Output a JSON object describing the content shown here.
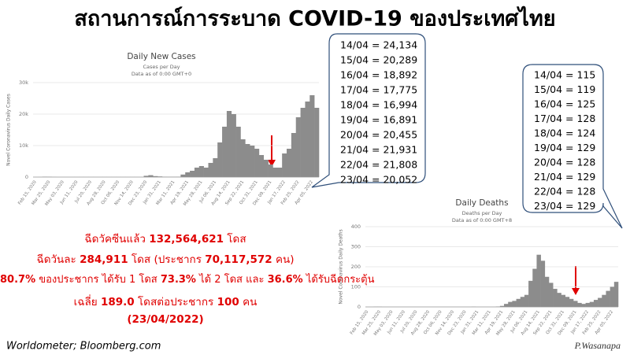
{
  "title": "สถานการณ์การระบาด COVID-19 ของประเทศไทย",
  "callouts": {
    "cases": [
      "14/04 = 24,134",
      "15/04 = 20,289",
      "16/04 = 18,892",
      "17/04 = 17,775",
      "18/04 = 16,994",
      "19/04 = 16,891",
      "20/04 = 20,455",
      "21/04 = 21,931",
      "22/04 = 21,808",
      "23/04 = 20,052"
    ],
    "deaths": [
      "14/04 = 115",
      "15/04 = 119",
      "16/04 = 125",
      "17/04 = 128",
      "18/04 = 124",
      "19/04 = 129",
      "20/04 = 128",
      "21/04 = 129",
      "22/04 = 128",
      "23/04 = 129"
    ]
  },
  "summary": [
    [
      "ฉีดวัคซีนแล้ว ",
      "132,564,621",
      " โดส"
    ],
    [
      "ฉีดวันละ ",
      "284,911",
      " โดส (ประชากร ",
      "70,117,572",
      " คน)"
    ],
    [
      "80.7%",
      " ของประชากร ได้รับ 1 โดส ",
      "73.3%",
      " ได้ 2 โดส และ ",
      "36.6%",
      " ได้รับฉีดกระตุ้น"
    ],
    [
      "เฉลี่ย ",
      "189.0",
      " โดสต่อประชากร ",
      "100",
      " คน"
    ],
    [
      "(23/04/2022)"
    ]
  ],
  "source": "Worldometer;  Bloomberg.com",
  "signature": "P.Wasanapa",
  "chart_data": [
    {
      "type": "bar",
      "title": "Daily New Cases",
      "subtitle": [
        "Cases per Day",
        "Data as of 0:00 GMT+0"
      ],
      "ylabel": "Novel Coronavirus Daily Cases",
      "color": "#8c8c8c",
      "categories": [
        "Feb 15, 2020",
        null,
        null,
        "Mar 25, 2020",
        null,
        null,
        "May 03, 2020",
        null,
        null,
        "Jun 11, 2020",
        null,
        null,
        "Jul 20, 2020",
        null,
        null,
        "Aug 28, 2020",
        null,
        null,
        "Oct 06, 2020",
        null,
        null,
        "Nov 14, 2020",
        null,
        null,
        "Dec 23, 2020",
        null,
        null,
        "Jan 31, 2021",
        null,
        null,
        "Mar 11, 2021",
        null,
        null,
        "Apr 19, 2021",
        null,
        null,
        "May 28, 2021",
        null,
        null,
        "Jul 06, 2021",
        null,
        null,
        "Aug 14, 2021",
        null,
        null,
        "Sep 22, 2021",
        null,
        null,
        "Oct 31, 2021",
        null,
        null,
        "Dec 09, 2021",
        null,
        null,
        "Jan 17, 2022",
        null,
        null,
        "Feb 25, 2022",
        null,
        null,
        "Apr 05, 2022",
        null
      ],
      "values": [
        0,
        10,
        120,
        100,
        20,
        5,
        5,
        3,
        5,
        5,
        5,
        5,
        5,
        5,
        5,
        5,
        5,
        5,
        5,
        5,
        5,
        5,
        5,
        5,
        400,
        600,
        300,
        200,
        100,
        80,
        80,
        100,
        800,
        1500,
        2000,
        3000,
        3500,
        3000,
        4500,
        6000,
        11000,
        16000,
        21000,
        20000,
        16000,
        12000,
        10500,
        10000,
        9000,
        7000,
        5500,
        4000,
        3000,
        3000,
        7500,
        9000,
        14000,
        19000,
        22000,
        24000,
        26000,
        22000
      ],
      "ylim": [
        0,
        30000
      ],
      "yticks": [
        0,
        {
          "value": 10000,
          "label": "10k"
        },
        {
          "value": 20000,
          "label": "20k"
        },
        {
          "value": 30000,
          "label": "30k"
        }
      ],
      "grid": true
    },
    {
      "type": "bar",
      "title": "Daily Deaths",
      "subtitle": [
        "Deaths per Day",
        "Data as of 0:00 GMT+8"
      ],
      "ylabel": "Novel Coronavirus Daily Deaths",
      "color": "#8c8c8c",
      "categories": [
        "Feb 15, 2020",
        null,
        null,
        "Mar 25, 2020",
        null,
        null,
        "May 03, 2020",
        null,
        null,
        "Jun 11, 2020",
        null,
        null,
        "Jul 20, 2020",
        null,
        null,
        "Aug 28, 2020",
        null,
        null,
        "Oct 06, 2020",
        null,
        null,
        "Nov 14, 2020",
        null,
        null,
        "Dec 23, 2020",
        null,
        null,
        "Jan 31, 2021",
        null,
        null,
        "Mar 11, 2021",
        null,
        null,
        "Apr 19, 2021",
        null,
        null,
        "May 28, 2021",
        null,
        null,
        "Jul 06, 2021",
        null,
        null,
        "Aug 14, 2021",
        null,
        null,
        "Sep 22, 2021",
        null,
        null,
        "Oct 31, 2021",
        null,
        null,
        "Dec 09, 2021",
        null,
        null,
        "Jan 17, 2022",
        null,
        null,
        "Feb 25, 2022",
        null,
        null,
        "Apr 05, 2022",
        null
      ],
      "values": [
        0,
        0,
        1,
        1,
        0,
        0,
        0,
        0,
        0,
        0,
        0,
        0,
        0,
        0,
        0,
        0,
        0,
        0,
        0,
        0,
        0,
        0,
        0,
        0,
        0,
        0,
        1,
        0,
        0,
        0,
        0,
        0,
        2,
        5,
        15,
        25,
        30,
        40,
        50,
        60,
        130,
        190,
        260,
        230,
        150,
        120,
        90,
        70,
        60,
        50,
        40,
        30,
        20,
        15,
        20,
        25,
        35,
        45,
        60,
        80,
        100,
        125
      ],
      "ylim": [
        0,
        400
      ],
      "yticks": [
        0,
        100,
        200,
        300,
        400
      ],
      "grid": true
    }
  ]
}
